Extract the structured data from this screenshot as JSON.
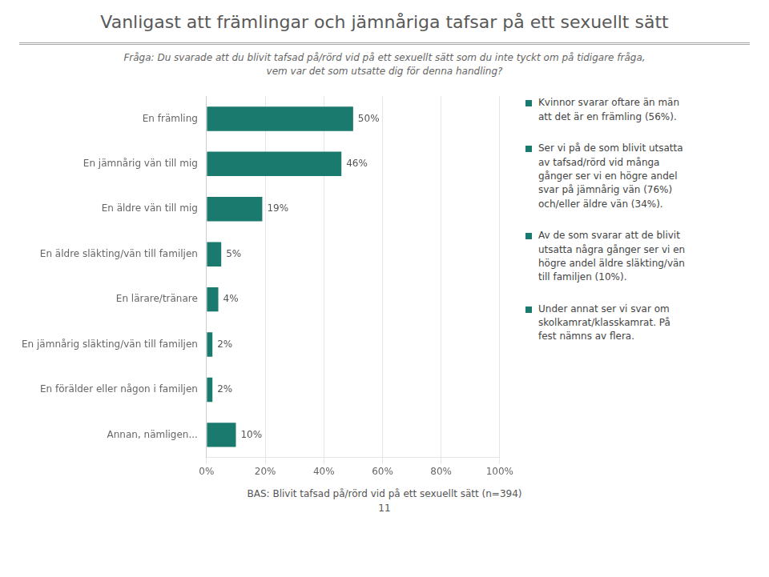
{
  "chart_data": {
    "type": "bar",
    "orientation": "horizontal",
    "title": "Vanligast att främlingar och jämnåriga tafsar på ett sexuellt sätt",
    "subtitle": "Fråga: Du svarade att du blivit tafsad på/rörd vid på ett sexuellt sätt som du inte tyckt om på tidigare fråga,\nvem var det som utsatte dig för denna handling?",
    "categories": [
      "En främling",
      "En jämnårig vän till mig",
      "En äldre vän till mig",
      "En äldre släkting/vän till familjen",
      "En lärare/tränare",
      "En jämnårig släkting/vän till familjen",
      "En förälder eller någon i familjen",
      "Annan, nämligen..."
    ],
    "values": [
      50,
      46,
      19,
      5,
      4,
      2,
      2,
      10
    ],
    "value_labels": [
      "50%",
      "46%",
      "19%",
      "5%",
      "4%",
      "2%",
      "2%",
      "10%"
    ],
    "data_labels": true,
    "color": "#1a7a6e",
    "xlim": [
      0,
      100
    ],
    "xticks": [
      {
        "value": 0,
        "label": "0%"
      },
      {
        "value": 20,
        "label": "20%"
      },
      {
        "value": 40,
        "label": "40%"
      },
      {
        "value": 60,
        "label": "60%"
      },
      {
        "value": 80,
        "label": "80%"
      },
      {
        "value": 100,
        "label": "100%"
      }
    ],
    "grid": true,
    "annotations": [
      "Kvinnor svarar oftare än män\natt det är en främling (56%).",
      "Ser vi på de som blivit utsatta\nav tafsad/rörd vid många\ngånger  ser vi en högre andel\nsvar på jämnårig vän (76%)\noch/eller äldre vän (34%).",
      "Av de som svarar att de blivit\nutsatta några gånger ser vi en\nhögre andel äldre släkting/vän\ntill familjen (10%).",
      "Under annat ser vi svar om\nskolkamrat/klasskamrat. På\nfest nämns av flera."
    ],
    "footnote": "BAS: Blivit tafsad på/rörd vid på ett sexuellt sätt (n=394)",
    "page_number": "11"
  }
}
